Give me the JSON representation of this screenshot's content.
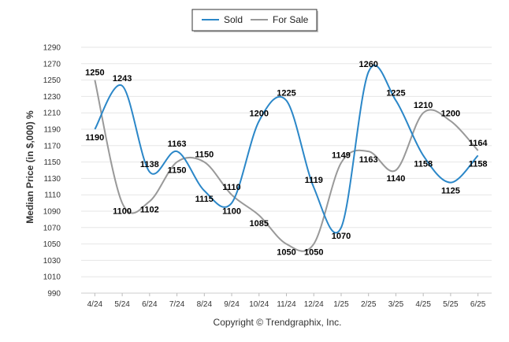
{
  "chart_data": {
    "type": "line",
    "categories": [
      "4/24",
      "5/24",
      "6/24",
      "7/24",
      "8/24",
      "9/24",
      "10/24",
      "11/24",
      "12/24",
      "1/25",
      "2/25",
      "3/25",
      "4/25",
      "5/25",
      "6/25"
    ],
    "series": [
      {
        "name": "Sold",
        "color": "#2b87c8",
        "values": [
          1190,
          1243,
          1138,
          1163,
          1115,
          1100,
          1200,
          1225,
          1119,
          1070,
          1260,
          1225,
          1158,
          1125,
          1158
        ]
      },
      {
        "name": "For Sale",
        "color": "#999999",
        "values": [
          1250,
          1100,
          1102,
          1150,
          1150,
          1110,
          1085,
          1050,
          1050,
          1149,
          1163,
          1140,
          1210,
          1200,
          1164
        ]
      }
    ],
    "ylabel": "Median Price (in $,000) %",
    "ylim": [
      990,
      1290
    ],
    "yticks": [
      990,
      1010,
      1030,
      1050,
      1070,
      1090,
      1110,
      1130,
      1150,
      1170,
      1190,
      1210,
      1230,
      1250,
      1270,
      1290
    ],
    "grid": true,
    "legend_position": "top-center",
    "footer": "Copyright © Trendgraphix, Inc."
  }
}
